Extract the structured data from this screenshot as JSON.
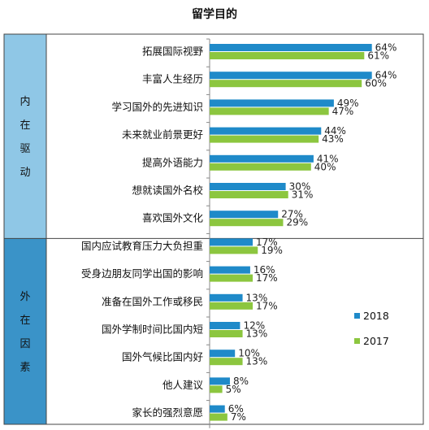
{
  "chart_data": {
    "type": "bar",
    "orientation": "horizontal",
    "title": "留学目的",
    "groups": [
      {
        "label": "内在驱动",
        "chars": [
          "内",
          "在",
          "驱",
          "动"
        ],
        "color": "#8fc7e6",
        "start": 0,
        "end": 6
      },
      {
        "label": "外在因素",
        "chars": [
          "外",
          "在",
          "因",
          "素"
        ],
        "color": "#3a93c8",
        "start": 7,
        "end": 13
      }
    ],
    "categories": [
      "拓展国际视野",
      "丰富人生经历",
      "学习国外的先进知识",
      "未来就业前景更好",
      "提高外语能力",
      "想就读国外名校",
      "喜欢国外文化",
      "国内应试教育压力大负担重",
      "受身边朋友同学出国的影响",
      "准备在国外工作或移民",
      "国外学制时间比国内短",
      "国外气候比国内好",
      "他人建议",
      "家长的强烈意愿"
    ],
    "series": [
      {
        "name": "2018",
        "color": "#1f8ac9",
        "values": [
          64,
          64,
          49,
          44,
          41,
          30,
          27,
          17,
          16,
          13,
          12,
          10,
          8,
          6
        ]
      },
      {
        "name": "2017",
        "color": "#8cc63f",
        "values": [
          61,
          60,
          47,
          43,
          40,
          31,
          29,
          19,
          17,
          17,
          13,
          13,
          5,
          7
        ]
      }
    ],
    "value_suffix": "%",
    "xlim": [
      0,
      70
    ],
    "grid": false,
    "legend_position": "bottom-right"
  }
}
